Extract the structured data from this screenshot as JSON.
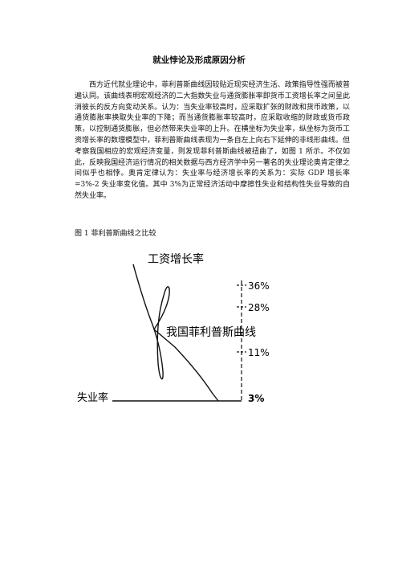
{
  "title": "就业悖论及形成原因分析",
  "paragraph": "西方近代就业理论中，菲利普斯曲线因较贴近现实经济生活、政策指导性强而被普遍认同。该曲线表明宏观经济的二大指数失业与通货膨胀率即货币工资增长率之间呈此消彼长的反方向变动关系。认为：当失业率较高时，应采取扩张的财政和货币政策，以通货膨胀率换取失业率的下降；而当通货膨胀率较高时，应采取收缩的财政或货币政策，以控制通货膨胀，但必然带来失业率的上升。在横坐标为失业率，纵坐标为货币工资增长率的数理模型中，菲利普斯曲线表现为一条自左上向右下延伸的非线形曲线。但考察我国相应的宏观经济变量，则发现菲利普斯曲线被扭曲了，如图 1 所示。不仅如此，反映我国经济运行情况的相关数据与西方经济学中另一著名的失业理论奥肯定律之间似乎也相悖。奥肯定律认为：失业率与经济增长率的关系为：实际 GDP 增长率=3%-2 失业率变化值。其中 3%为正常经济活动中摩擦性失业和结构性失业导致的自然失业率。",
  "figure_caption": "图 1 菲利普斯曲线之比较",
  "figure": {
    "y_axis_label": "工资增长率",
    "x_axis_label": "失业率",
    "curve_label": "我国菲利普斯曲线",
    "ticks": [
      "36%",
      "28%",
      "11%",
      "3%"
    ]
  }
}
